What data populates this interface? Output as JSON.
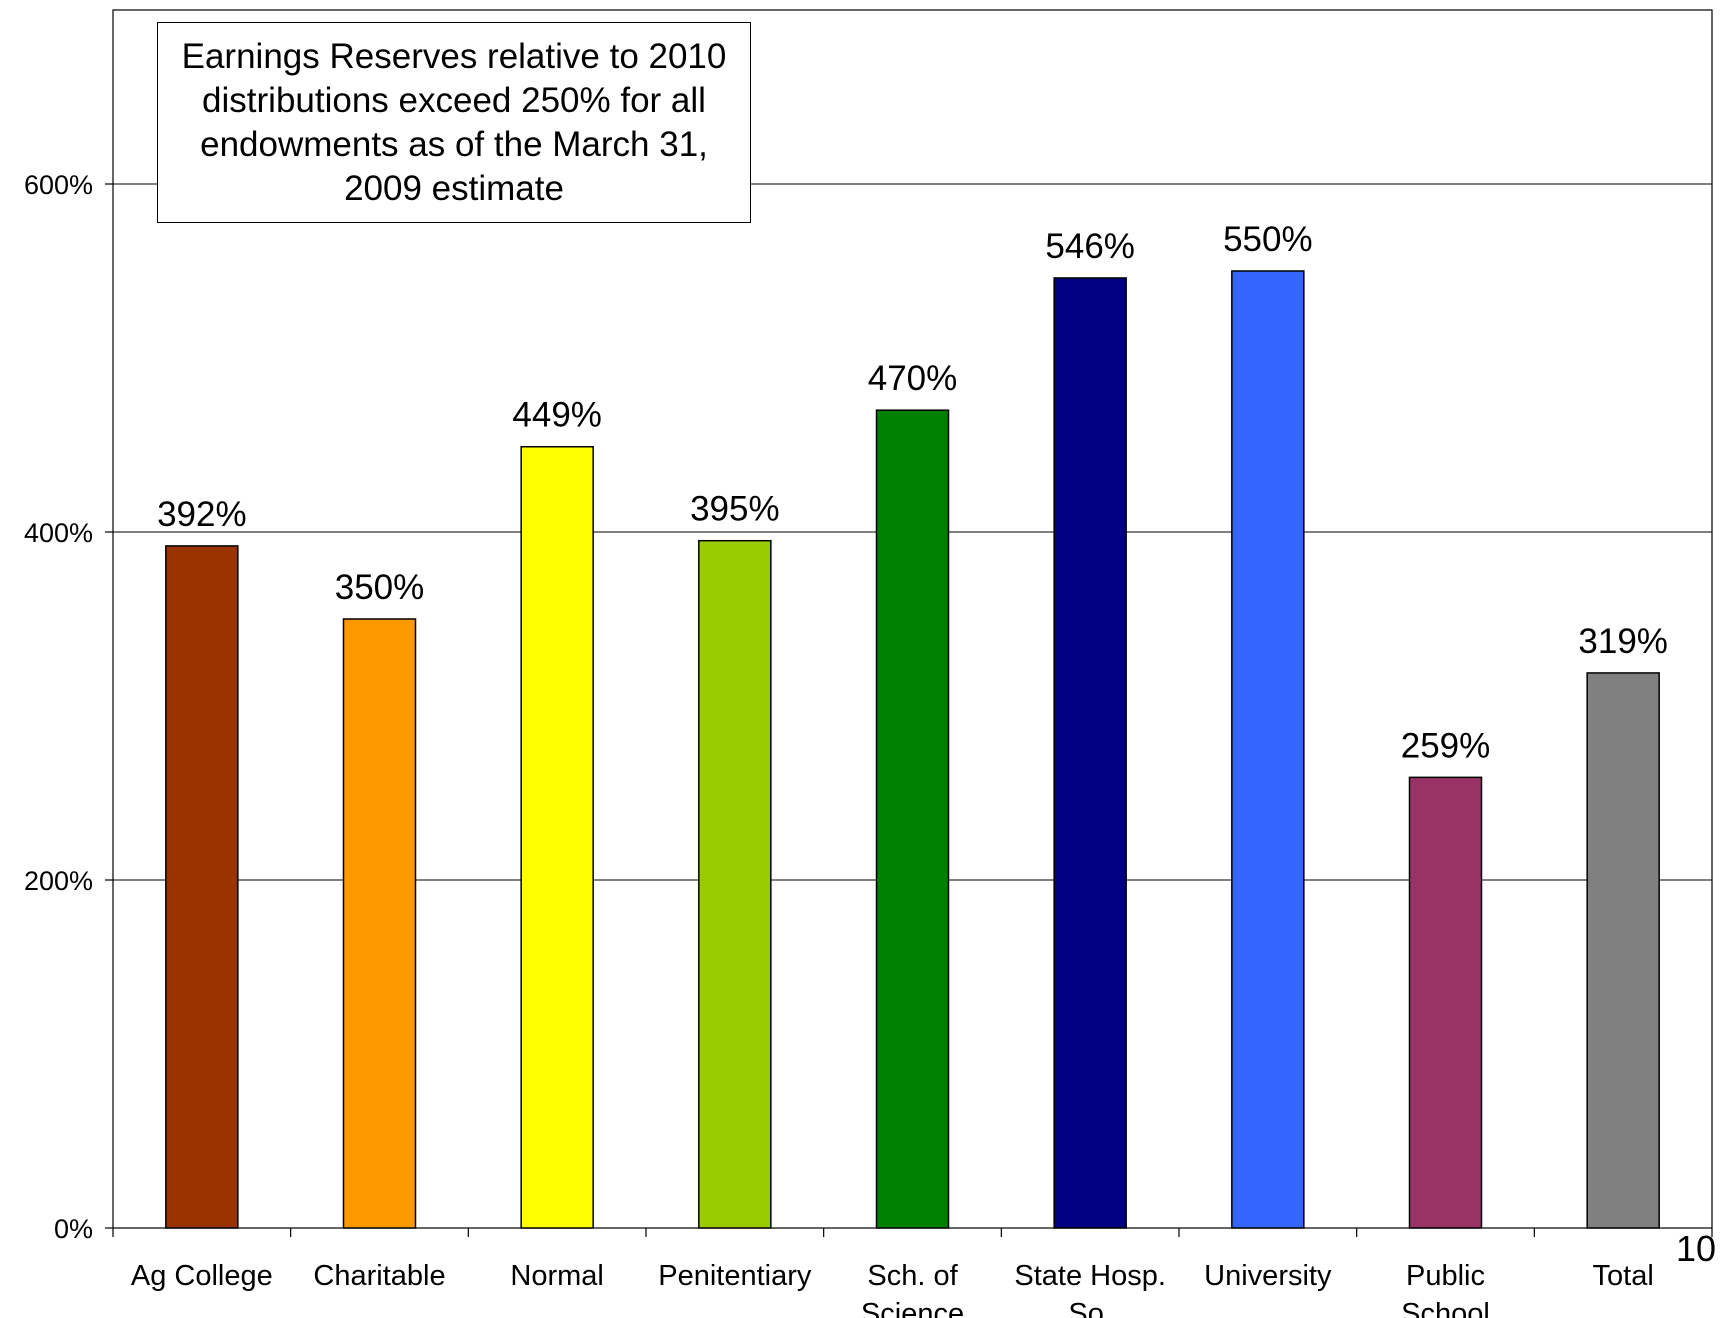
{
  "chart_data": {
    "type": "bar",
    "title": "",
    "xlabel": "",
    "ylabel": "",
    "ylim": [
      0,
      700
    ],
    "y_ticks": [
      0,
      200,
      400,
      600
    ],
    "y_tick_labels": [
      "0%",
      "200%",
      "400%",
      "600%"
    ],
    "grid": true,
    "legend": "none",
    "categories": [
      [
        "Ag College"
      ],
      [
        "Charitable"
      ],
      [
        "Normal"
      ],
      [
        "Penitentiary"
      ],
      [
        "Sch. of",
        "Science"
      ],
      [
        "State Hosp.",
        "So."
      ],
      [
        "University"
      ],
      [
        "Public",
        "School"
      ],
      [
        "Total"
      ]
    ],
    "values": [
      392,
      350,
      449,
      395,
      470,
      546,
      550,
      259,
      319
    ],
    "value_labels": [
      "392%",
      "350%",
      "449%",
      "395%",
      "470%",
      "546%",
      "550%",
      "259%",
      "319%"
    ],
    "colors": [
      "#993300",
      "#FF9900",
      "#FFFF00",
      "#99CC00",
      "#008000",
      "#000080",
      "#3366FF",
      "#993366",
      "#808080"
    ],
    "annotation": "Earnings Reserves relative to 2010 distributions exceed 250% for all endowments as of the March 31, 2009 estimate"
  },
  "page_number": "10"
}
